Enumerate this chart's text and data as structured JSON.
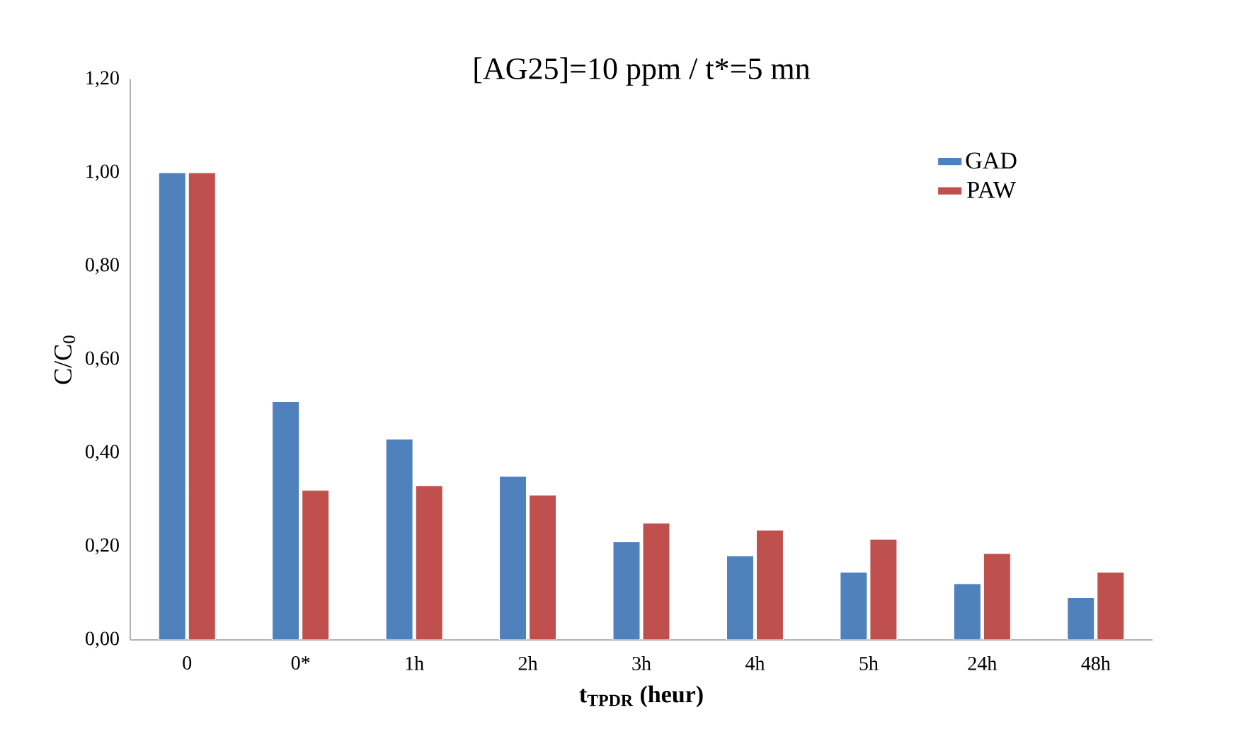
{
  "chart_data": {
    "type": "bar",
    "title": "[AG25]=10 ppm / t*=5 mn",
    "xlabel": "t$_{TPDR}$ (heur)",
    "ylabel": "C/C$_{0}$",
    "categories": [
      "0",
      "0*",
      "1h",
      "2h",
      "3h",
      "4h",
      "5h",
      "24h",
      "48h"
    ],
    "series": [
      {
        "name": "GAD",
        "color": "#4f81bd",
        "values": [
          1.0,
          0.51,
          0.43,
          0.35,
          0.21,
          0.18,
          0.145,
          0.12,
          0.09
        ]
      },
      {
        "name": "PAW",
        "color": "#c0504d",
        "values": [
          1.0,
          0.32,
          0.33,
          0.31,
          0.25,
          0.235,
          0.215,
          0.185,
          0.145
        ]
      }
    ],
    "ylim": [
      0,
      1.2
    ],
    "yticks": [
      {
        "value": 0,
        "label": "0,00"
      },
      {
        "value": 0.2,
        "label": "0,20"
      },
      {
        "value": 0.4,
        "label": "0,40"
      },
      {
        "value": 0.6,
        "label": "0,60"
      },
      {
        "value": 0.8,
        "label": "0,80"
      },
      {
        "value": 1.0,
        "label": "1,00"
      },
      {
        "value": 1.2,
        "label": "1,20"
      }
    ],
    "grid": false,
    "legend": "top right"
  }
}
